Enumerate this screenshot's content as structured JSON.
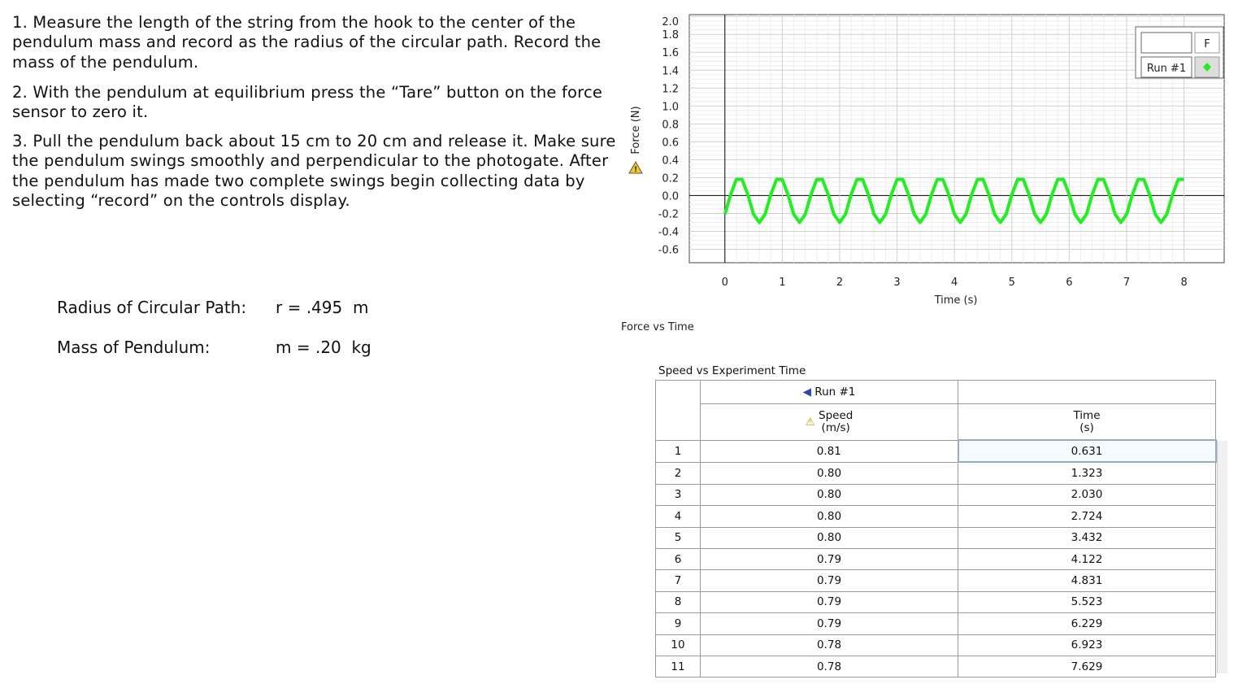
{
  "instructions": [
    "1. Measure the length of the string from the hook to the center of the pendulum mass and record as the radius of the circular path. Record the mass of the pendulum.",
    "2. With the pendulum at equilibrium press the “Tare” button on the force sensor to zero it.",
    "3. Pull the pendulum back about 15 cm to 20 cm and release it. Make sure the pendulum swings smoothly and perpendicular to the photogate.  After the pendulum has made two complete swings begin collecting data by selecting “record” on the controls display."
  ],
  "measurements": [
    {
      "label": "Radius of Circular Path:",
      "value": "r = .495  m"
    },
    {
      "label": "Mass of Pendulum:",
      "value": "m = .20  kg"
    }
  ],
  "chart_data": {
    "type": "line",
    "caption": "Force vs Time",
    "x_label": "Time (s)",
    "y_label": "Force (N)",
    "legend_header": "F",
    "x": [
      0,
      0.1,
      0.2,
      0.3,
      0.4,
      0.5,
      0.6,
      0.7,
      0.8,
      0.9,
      1.0,
      1.1,
      1.2,
      1.3,
      1.4,
      1.5,
      1.6,
      1.7,
      1.8,
      1.9,
      2.0,
      2.1,
      2.2,
      2.3,
      2.4,
      2.5,
      2.6,
      2.7,
      2.8,
      2.9,
      3.0,
      3.1,
      3.2,
      3.3,
      3.4,
      3.5,
      3.6,
      3.7,
      3.8,
      3.9,
      4.0,
      4.1,
      4.2,
      4.3,
      4.4,
      4.5,
      4.6,
      4.7,
      4.8,
      4.9,
      5.0,
      5.1,
      5.2,
      5.3,
      5.4,
      5.5,
      5.6,
      5.7,
      5.8,
      5.9,
      6.0,
      6.1,
      6.2,
      6.3,
      6.4,
      6.5,
      6.6,
      6.7,
      6.8,
      6.9,
      7.0,
      7.1,
      7.2,
      7.3,
      7.4,
      7.5,
      7.6,
      7.7,
      7.8,
      7.9,
      8.0
    ],
    "series": [
      {
        "name": "Run #1",
        "color": "#22ee22",
        "values": [
          -0.21,
          0.01,
          0.18,
          0.18,
          0.01,
          -0.21,
          -0.3,
          -0.21,
          0.01,
          0.18,
          0.18,
          0.01,
          -0.21,
          -0.3,
          -0.21,
          0.01,
          0.18,
          0.18,
          0.01,
          -0.21,
          -0.3,
          -0.21,
          0.01,
          0.18,
          0.18,
          0.01,
          -0.21,
          -0.3,
          -0.21,
          0.01,
          0.18,
          0.18,
          0.01,
          -0.21,
          -0.3,
          -0.21,
          0.01,
          0.18,
          0.18,
          0.01,
          -0.21,
          -0.3,
          -0.21,
          0.01,
          0.18,
          0.18,
          0.01,
          -0.21,
          -0.3,
          -0.21,
          0.01,
          0.18,
          0.18,
          0.01,
          -0.21,
          -0.3,
          -0.21,
          0.01,
          0.18,
          0.18,
          0.01,
          -0.21,
          -0.3,
          -0.21,
          0.01,
          0.18,
          0.18,
          0.01,
          -0.21,
          -0.3,
          -0.21,
          0.01,
          0.18,
          0.18,
          0.01,
          -0.21,
          -0.3,
          -0.21,
          0.01,
          0.18,
          0.18
        ]
      }
    ],
    "xlim": [
      -0.62,
      8.7
    ],
    "xticks": [
      0,
      1,
      2,
      3,
      4,
      5,
      6,
      7,
      8
    ],
    "ylim": [
      -0.75,
      2.02
    ],
    "yticks": [
      -0.6,
      -0.4,
      -0.2,
      {
        "value": 0,
        "label": "0.0"
      },
      0.2,
      0.4,
      0.6,
      0.8,
      {
        "value": 1,
        "label": "1.0"
      },
      1.2,
      1.4,
      1.6,
      1.8,
      {
        "value": 2,
        "label": "2.0"
      }
    ],
    "grid": true
  },
  "table": {
    "title": "Speed vs Experiment Time",
    "run": "Run #1",
    "columns": [
      [
        "Speed",
        "(m/s)"
      ],
      [
        "Time",
        "(s)"
      ]
    ],
    "rows": [
      [
        "1",
        "0.81",
        "0.631"
      ],
      [
        "2",
        "0.80",
        "1.323"
      ],
      [
        "3",
        "0.80",
        "2.030"
      ],
      [
        "4",
        "0.80",
        "2.724"
      ],
      [
        "5",
        "0.80",
        "3.432"
      ],
      [
        "6",
        "0.79",
        "4.122"
      ],
      [
        "7",
        "0.79",
        "4.831"
      ],
      [
        "8",
        "0.79",
        "5.523"
      ],
      [
        "9",
        "0.79",
        "6.229"
      ],
      [
        "10",
        "0.78",
        "6.923"
      ],
      [
        "11",
        "0.78",
        "7.629"
      ]
    ]
  }
}
